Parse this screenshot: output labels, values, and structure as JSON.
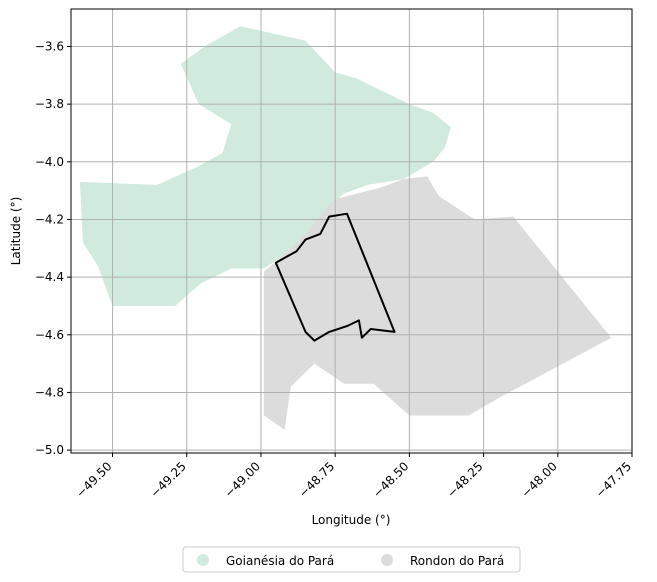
{
  "chart_data": {
    "type": "map",
    "xlabel": "Longitude (°)",
    "ylabel": "Latitude (°)",
    "xlim": [
      -49.64,
      -47.75
    ],
    "ylim": [
      -5.01,
      -3.47
    ],
    "x_ticks": [
      -49.5,
      -49.25,
      -49.0,
      -48.75,
      -48.5,
      -48.25,
      -48.0,
      -47.75
    ],
    "x_tick_labels": [
      "−49.50",
      "−49.25",
      "−49.00",
      "−48.75",
      "−48.50",
      "−48.25",
      "−48.00",
      "−47.75"
    ],
    "y_ticks": [
      -3.6,
      -3.8,
      -4.0,
      -4.2,
      -4.4,
      -4.6,
      -4.8,
      -5.0
    ],
    "y_tick_labels": [
      "−3.6",
      "−3.8",
      "−4.0",
      "−4.2",
      "−4.4",
      "−4.6",
      "−4.8",
      "−5.0"
    ],
    "grid": true,
    "legend_position": "bottom-center",
    "regions": [
      {
        "name": "Goianésia do Pará",
        "color": "#d0ebdd",
        "polygon": [
          [
            -49.07,
            -3.53
          ],
          [
            -48.98,
            -3.55
          ],
          [
            -48.85,
            -3.58
          ],
          [
            -48.75,
            -3.69
          ],
          [
            -48.68,
            -3.71
          ],
          [
            -48.6,
            -3.75
          ],
          [
            -48.5,
            -3.8
          ],
          [
            -48.42,
            -3.83
          ],
          [
            -48.36,
            -3.88
          ],
          [
            -48.38,
            -3.95
          ],
          [
            -48.42,
            -4.0
          ],
          [
            -48.52,
            -4.06
          ],
          [
            -48.64,
            -4.08
          ],
          [
            -48.72,
            -4.11
          ],
          [
            -48.78,
            -4.16
          ],
          [
            -48.85,
            -4.25
          ],
          [
            -48.93,
            -4.33
          ],
          [
            -48.99,
            -4.37
          ],
          [
            -49.1,
            -4.37
          ],
          [
            -49.2,
            -4.42
          ],
          [
            -49.29,
            -4.5
          ],
          [
            -49.5,
            -4.5
          ],
          [
            -49.55,
            -4.36
          ],
          [
            -49.6,
            -4.28
          ],
          [
            -49.61,
            -4.07
          ],
          [
            -49.35,
            -4.08
          ],
          [
            -49.22,
            -4.02
          ],
          [
            -49.13,
            -3.97
          ],
          [
            -49.1,
            -3.87
          ],
          [
            -49.21,
            -3.8
          ],
          [
            -49.27,
            -3.66
          ],
          [
            -49.19,
            -3.6
          ]
        ]
      },
      {
        "name": "Rondon do Pará",
        "color": "#dcdcdc",
        "polygon": [
          [
            -48.75,
            -4.13
          ],
          [
            -48.6,
            -4.09
          ],
          [
            -48.52,
            -4.06
          ],
          [
            -48.44,
            -4.05
          ],
          [
            -48.4,
            -4.12
          ],
          [
            -48.28,
            -4.2
          ],
          [
            -48.15,
            -4.19
          ],
          [
            -47.82,
            -4.61
          ],
          [
            -48.2,
            -4.82
          ],
          [
            -48.3,
            -4.88
          ],
          [
            -48.5,
            -4.88
          ],
          [
            -48.62,
            -4.77
          ],
          [
            -48.72,
            -4.77
          ],
          [
            -48.82,
            -4.7
          ],
          [
            -48.9,
            -4.78
          ],
          [
            -48.92,
            -4.93
          ],
          [
            -48.99,
            -4.88
          ],
          [
            -48.99,
            -4.38
          ],
          [
            -48.93,
            -4.33
          ],
          [
            -48.85,
            -4.25
          ],
          [
            -48.78,
            -4.16
          ]
        ]
      }
    ],
    "outline": {
      "color": "#000000",
      "polygon": [
        [
          -48.77,
          -4.19
        ],
        [
          -48.71,
          -4.18
        ],
        [
          -48.55,
          -4.59
        ],
        [
          -48.63,
          -4.58
        ],
        [
          -48.66,
          -4.61
        ],
        [
          -48.67,
          -4.55
        ],
        [
          -48.71,
          -4.57
        ],
        [
          -48.77,
          -4.59
        ],
        [
          -48.82,
          -4.62
        ],
        [
          -48.85,
          -4.59
        ],
        [
          -48.95,
          -4.35
        ],
        [
          -48.88,
          -4.31
        ],
        [
          -48.85,
          -4.27
        ],
        [
          -48.8,
          -4.25
        ]
      ]
    }
  }
}
